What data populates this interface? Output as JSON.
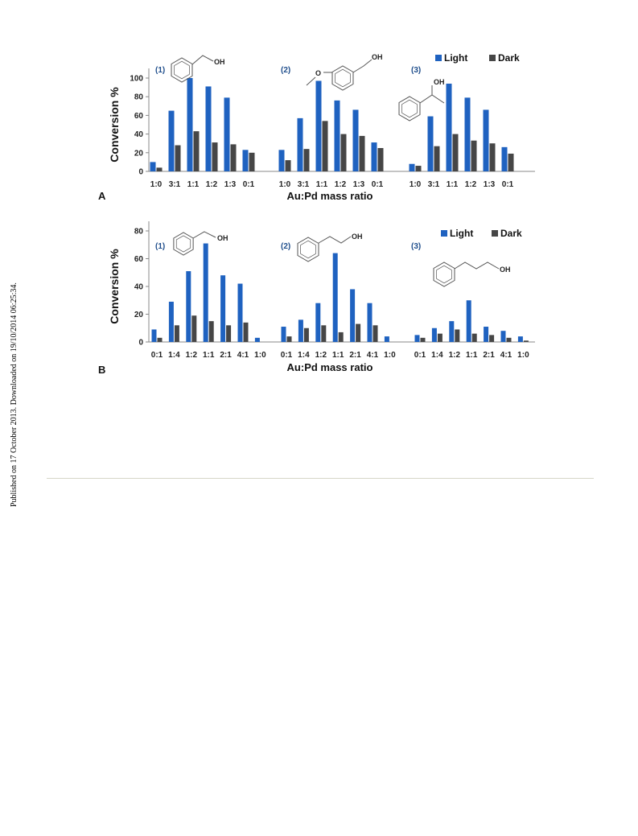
{
  "side_note": "Published on 17 October 2013. Downloaded on 19/10/2014 06:25:34.",
  "colors": {
    "light": "#1f62c0",
    "dark": "#464646"
  },
  "legend": {
    "light": "Light",
    "dark": "Dark"
  },
  "chart_data": [
    {
      "type": "bar",
      "panel_label": "A",
      "xlabel": "Au:Pd mass ratio",
      "ylabel": "Conversion %",
      "ylim": [
        0,
        100
      ],
      "yticks": [
        0,
        20,
        40,
        60,
        80,
        100
      ],
      "legend_position": "top-right",
      "groups": [
        {
          "label": "(1)",
          "molecule_labels": [
            "OH"
          ],
          "categories": [
            "1:0",
            "3:1",
            "1:1",
            "1:2",
            "1:3",
            "0:1"
          ],
          "series": [
            {
              "name": "Light",
              "values": [
                10,
                65,
                100,
                91,
                79,
                23
              ]
            },
            {
              "name": "Dark",
              "values": [
                4,
                28,
                43,
                31,
                29,
                20
              ]
            }
          ]
        },
        {
          "label": "(2)",
          "molecule_labels": [
            "O",
            "OH"
          ],
          "categories": [
            "1:0",
            "3:1",
            "1:1",
            "1:2",
            "1:3",
            "0:1"
          ],
          "series": [
            {
              "name": "Light",
              "values": [
                23,
                57,
                97,
                76,
                66,
                31
              ]
            },
            {
              "name": "Dark",
              "values": [
                12,
                24,
                54,
                40,
                38,
                25
              ]
            }
          ]
        },
        {
          "label": "(3)",
          "molecule_labels": [
            "OH"
          ],
          "categories": [
            "1:0",
            "3:1",
            "1:1",
            "1:2",
            "1:3",
            "0:1"
          ],
          "series": [
            {
              "name": "Light",
              "values": [
                8,
                59,
                94,
                79,
                66,
                26
              ]
            },
            {
              "name": "Dark",
              "values": [
                6,
                27,
                40,
                33,
                30,
                19
              ]
            }
          ]
        }
      ]
    },
    {
      "type": "bar",
      "panel_label": "B",
      "xlabel": "Au:Pd mass ratio",
      "ylabel": "Conversion %",
      "ylim": [
        0,
        80
      ],
      "yticks": [
        0,
        20,
        40,
        60,
        80
      ],
      "legend_position": "top-right",
      "groups": [
        {
          "label": "(1)",
          "molecule_labels": [
            "OH"
          ],
          "categories": [
            "0:1",
            "1:4",
            "1:2",
            "1:1",
            "2:1",
            "4:1",
            "1:0"
          ],
          "series": [
            {
              "name": "Light",
              "values": [
                9,
                29,
                51,
                71,
                48,
                42,
                3
              ]
            },
            {
              "name": "Dark",
              "values": [
                3,
                12,
                19,
                15,
                12,
                14,
                0
              ]
            }
          ]
        },
        {
          "label": "(2)",
          "molecule_labels": [
            "OH"
          ],
          "categories": [
            "0:1",
            "1:4",
            "1:2",
            "1:1",
            "2:1",
            "4:1",
            "1:0"
          ],
          "series": [
            {
              "name": "Light",
              "values": [
                11,
                16,
                28,
                64,
                38,
                28,
                4
              ]
            },
            {
              "name": "Dark",
              "values": [
                4,
                10,
                12,
                7,
                13,
                12,
                0
              ]
            }
          ]
        },
        {
          "label": "(3)",
          "molecule_labels": [
            "OH"
          ],
          "categories": [
            "0:1",
            "1:4",
            "1:2",
            "1:1",
            "2:1",
            "4:1",
            "1:0"
          ],
          "series": [
            {
              "name": "Light",
              "values": [
                5,
                10,
                15,
                30,
                11,
                8,
                4
              ]
            },
            {
              "name": "Dark",
              "values": [
                3,
                6,
                9,
                6,
                5,
                3,
                1
              ]
            }
          ]
        }
      ]
    }
  ]
}
